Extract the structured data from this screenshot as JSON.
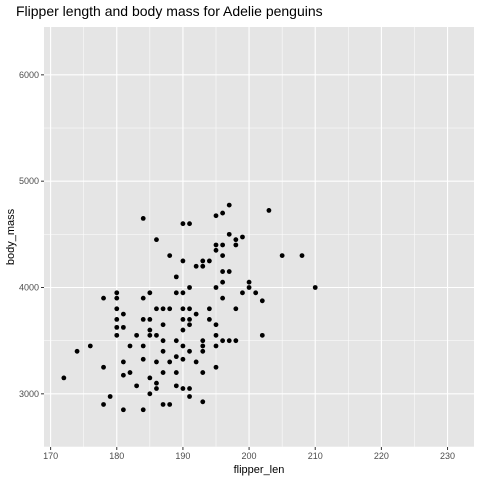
{
  "chart_data": {
    "type": "scatter",
    "title": "Flipper length and body mass for Adelie penguins",
    "xlabel": "flipper_len",
    "ylabel": "body_mass",
    "xlim": [
      169,
      234
    ],
    "ylim": [
      2500,
      6450
    ],
    "x_ticks": [
      170,
      180,
      190,
      200,
      210,
      220,
      230
    ],
    "y_ticks": [
      3000,
      4000,
      5000,
      6000
    ],
    "grid": true,
    "background": "#e5e5e5",
    "grid_color": "#ffffff",
    "point_color": "#000000",
    "points": [
      [
        172,
        3150
      ],
      [
        174,
        3400
      ],
      [
        176,
        3450
      ],
      [
        178,
        3250
      ],
      [
        178,
        3900
      ],
      [
        178,
        2900
      ],
      [
        179,
        2975
      ],
      [
        180,
        3950
      ],
      [
        180,
        3800
      ],
      [
        180,
        3625
      ],
      [
        180,
        3550
      ],
      [
        180,
        3700
      ],
      [
        180,
        3900
      ],
      [
        181,
        3750
      ],
      [
        181,
        3625
      ],
      [
        181,
        3300
      ],
      [
        181,
        3175
      ],
      [
        181,
        2850
      ],
      [
        182,
        3450
      ],
      [
        182,
        3200
      ],
      [
        183,
        3550
      ],
      [
        183,
        3075
      ],
      [
        184,
        4650
      ],
      [
        184,
        3900
      ],
      [
        184,
        3700
      ],
      [
        184,
        3450
      ],
      [
        184,
        3325
      ],
      [
        184,
        2850
      ],
      [
        185,
        3950
      ],
      [
        185,
        3700
      ],
      [
        185,
        3600
      ],
      [
        185,
        3550
      ],
      [
        185,
        3150
      ],
      [
        185,
        3000
      ],
      [
        186,
        4450
      ],
      [
        186,
        3800
      ],
      [
        186,
        3550
      ],
      [
        186,
        3100
      ],
      [
        186,
        3050
      ],
      [
        186,
        3300
      ],
      [
        187,
        3800
      ],
      [
        187,
        3650
      ],
      [
        187,
        3500
      ],
      [
        187,
        3400
      ],
      [
        187,
        3200
      ],
      [
        187,
        2900
      ],
      [
        188,
        4300
      ],
      [
        188,
        3800
      ],
      [
        188,
        3300
      ],
      [
        188,
        2900
      ],
      [
        189,
        4100
      ],
      [
        189,
        3950
      ],
      [
        189,
        3500
      ],
      [
        189,
        3350
      ],
      [
        189,
        3200
      ],
      [
        189,
        3075
      ],
      [
        190,
        4600
      ],
      [
        190,
        4250
      ],
      [
        190,
        3950
      ],
      [
        190,
        3800
      ],
      [
        190,
        3700
      ],
      [
        190,
        3600
      ],
      [
        190,
        3450
      ],
      [
        190,
        3325
      ],
      [
        190,
        3050
      ],
      [
        191,
        4600
      ],
      [
        191,
        4000
      ],
      [
        191,
        3800
      ],
      [
        191,
        3700
      ],
      [
        191,
        3650
      ],
      [
        191,
        3400
      ],
      [
        191,
        3050
      ],
      [
        191,
        2975
      ],
      [
        192,
        4200
      ],
      [
        192,
        3750
      ],
      [
        192,
        3300
      ],
      [
        193,
        4250
      ],
      [
        193,
        4200
      ],
      [
        193,
        3500
      ],
      [
        193,
        3400
      ],
      [
        193,
        3450
      ],
      [
        193,
        3200
      ],
      [
        193,
        2925
      ],
      [
        194,
        4250
      ],
      [
        194,
        3800
      ],
      [
        194,
        3700
      ],
      [
        195,
        4675
      ],
      [
        195,
        4400
      ],
      [
        195,
        4350
      ],
      [
        195,
        4000
      ],
      [
        195,
        3650
      ],
      [
        195,
        3550
      ],
      [
        195,
        3450
      ],
      [
        195,
        3250
      ],
      [
        196,
        4700
      ],
      [
        196,
        4400
      ],
      [
        196,
        4300
      ],
      [
        196,
        4150
      ],
      [
        196,
        4050
      ],
      [
        196,
        3900
      ],
      [
        196,
        3500
      ],
      [
        197,
        4775
      ],
      [
        197,
        4500
      ],
      [
        197,
        4150
      ],
      [
        197,
        3500
      ],
      [
        198,
        4450
      ],
      [
        198,
        4400
      ],
      [
        198,
        3800
      ],
      [
        198,
        3500
      ],
      [
        199,
        4475
      ],
      [
        199,
        3950
      ],
      [
        200,
        4050
      ],
      [
        200,
        4000
      ],
      [
        201,
        3950
      ],
      [
        202,
        3550
      ],
      [
        202,
        3875
      ],
      [
        203,
        4725
      ],
      [
        205,
        4300
      ],
      [
        208,
        4300
      ],
      [
        210,
        4000
      ]
    ]
  }
}
